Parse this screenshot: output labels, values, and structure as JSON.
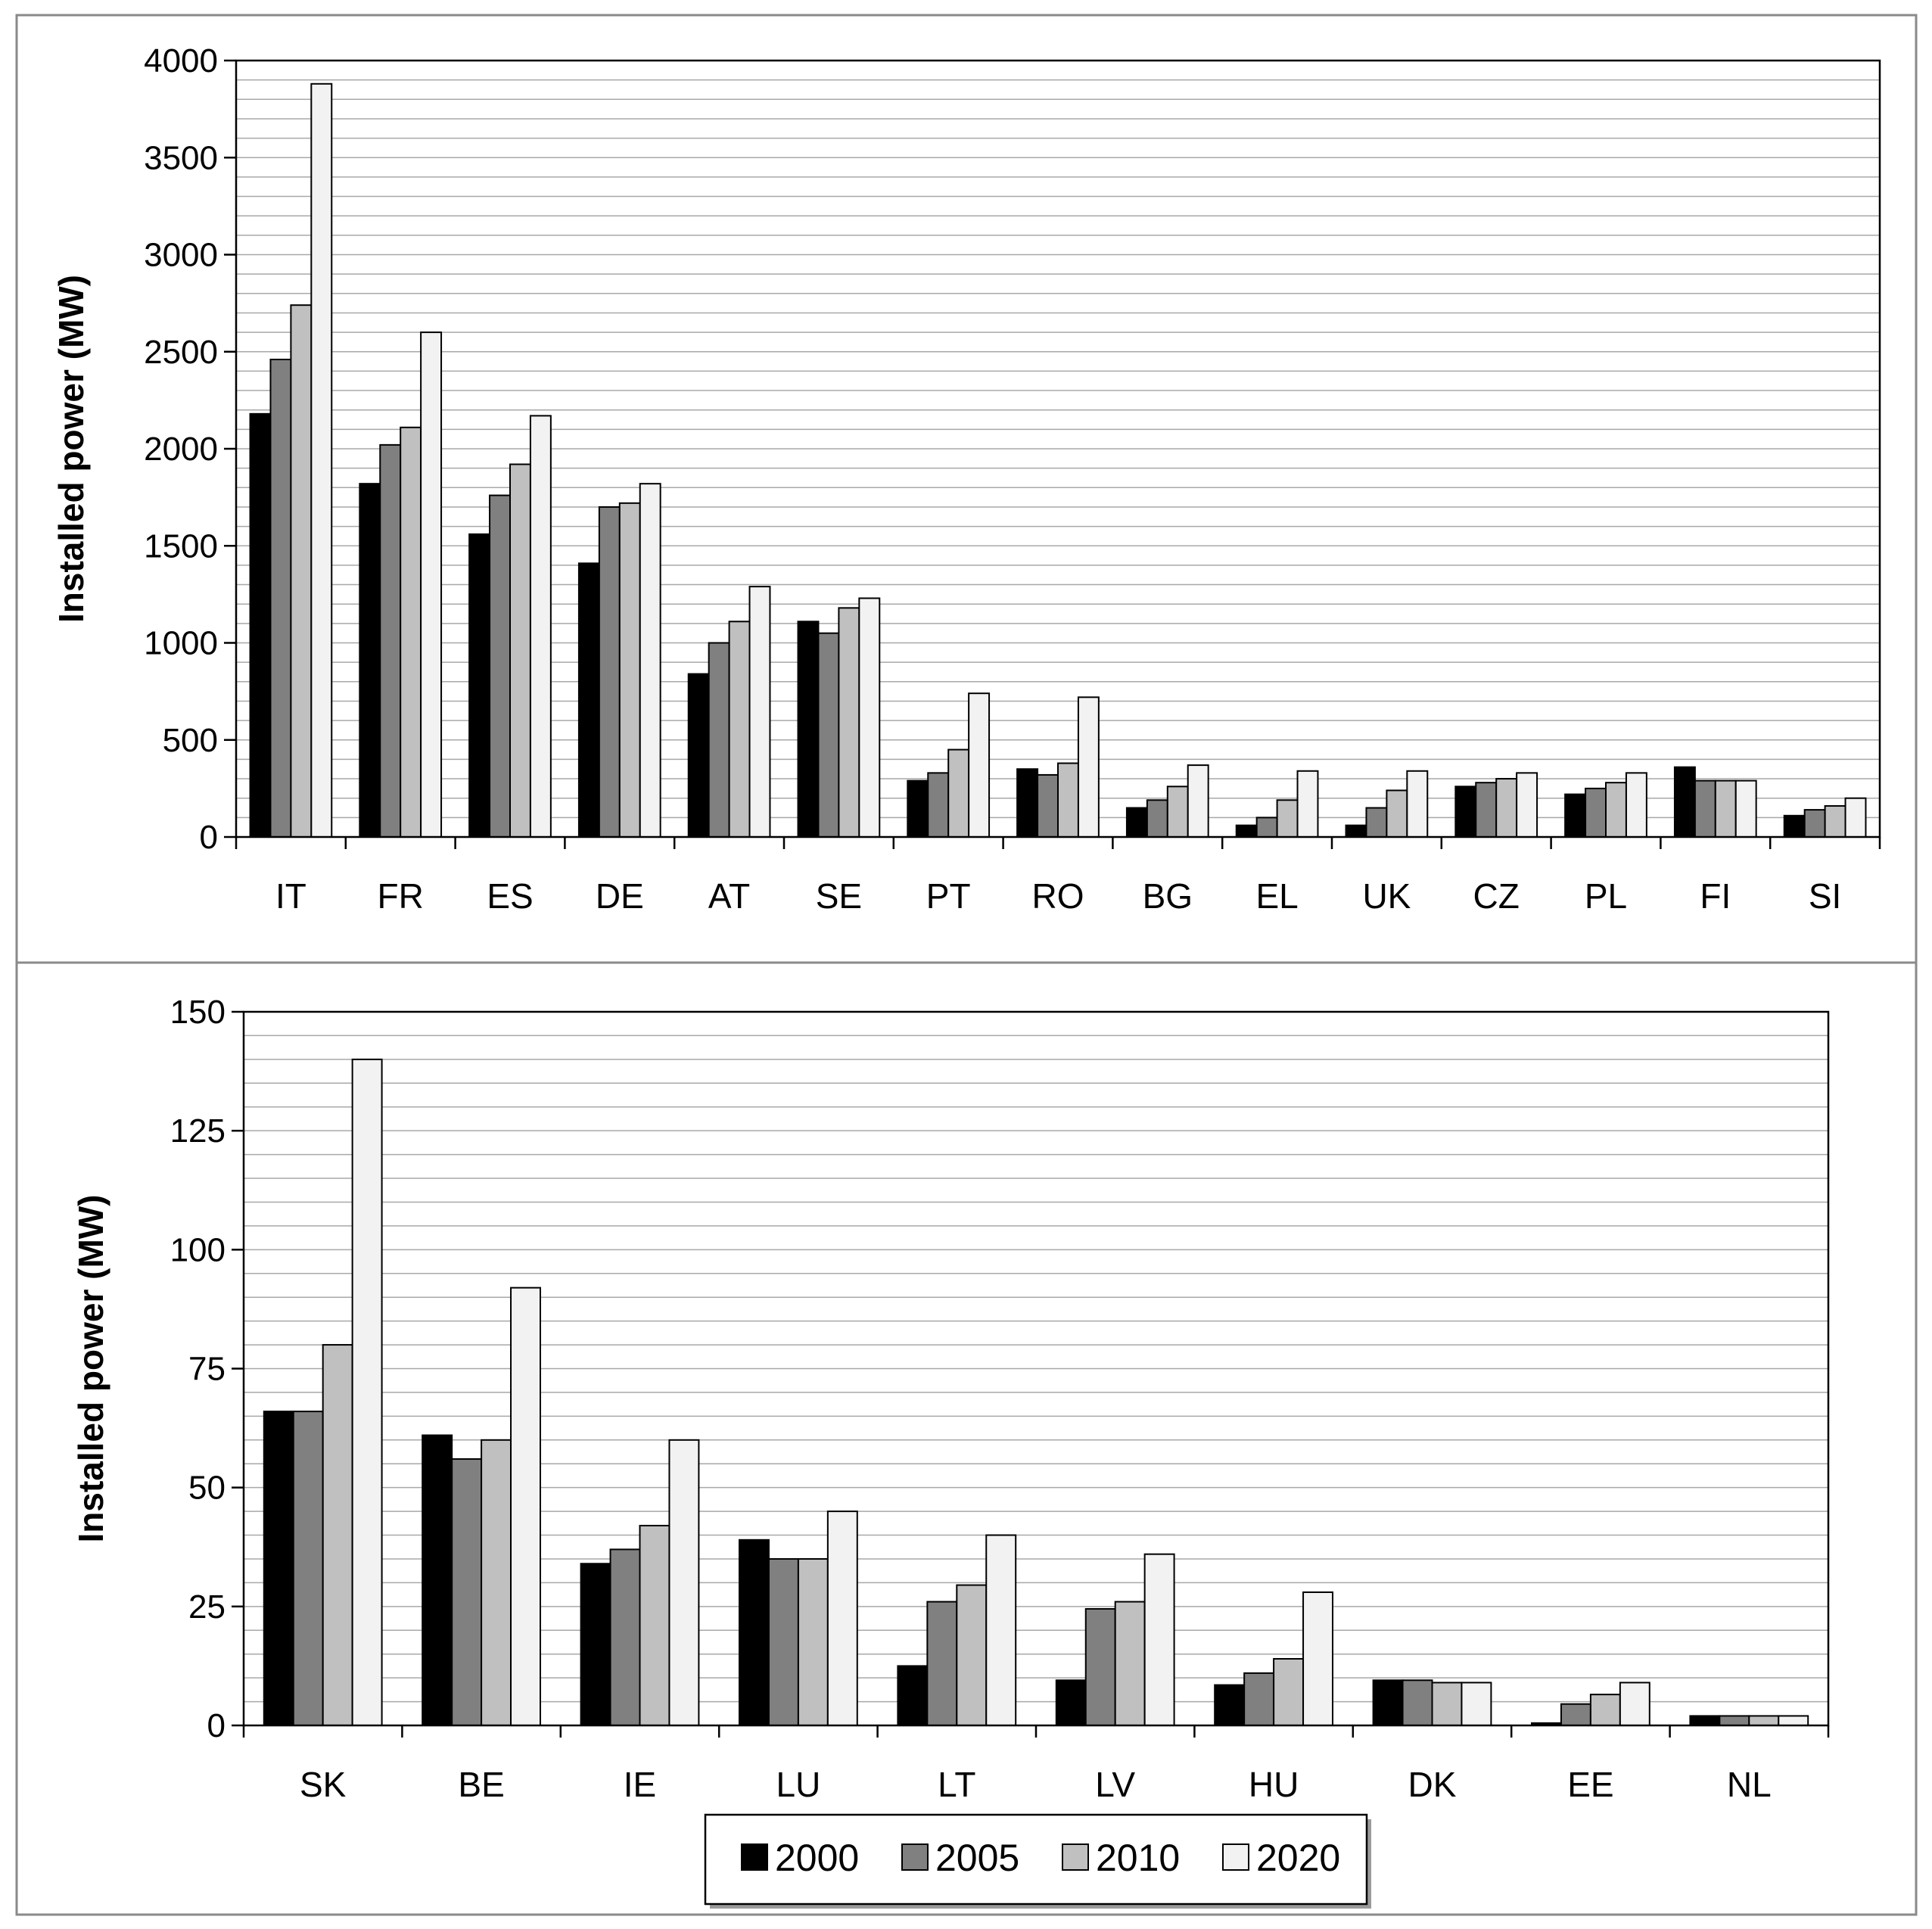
{
  "chart_data": [
    {
      "type": "bar",
      "ylabel": "Installed  power (MW)",
      "ylim": [
        0,
        4000
      ],
      "yticks": [
        0,
        500,
        1000,
        1500,
        2000,
        2500,
        3000,
        3500,
        4000
      ],
      "ytick_labels": [
        "0",
        "500",
        "1000",
        "1500",
        "2000",
        "2500",
        "3000",
        "3500",
        "4000"
      ],
      "minor_grid_step": 100,
      "grid": true,
      "categories": [
        "IT",
        "FR",
        "ES",
        "DE",
        "AT",
        "SE",
        "PT",
        "RO",
        "BG",
        "EL",
        "UK",
        "CZ",
        "PL",
        "FI",
        "SI"
      ],
      "series": [
        {
          "name": "2000",
          "color": "#000000",
          "values": [
            2180,
            1820,
            1560,
            1410,
            840,
            1110,
            290,
            350,
            150,
            60,
            60,
            260,
            220,
            360,
            110
          ]
        },
        {
          "name": "2005",
          "color": "#808080",
          "values": [
            2460,
            2020,
            1760,
            1700,
            1000,
            1050,
            330,
            320,
            190,
            100,
            150,
            280,
            250,
            290,
            140
          ]
        },
        {
          "name": "2010",
          "color": "#c0c0c0",
          "values": [
            2740,
            2110,
            1920,
            1720,
            1110,
            1180,
            450,
            380,
            260,
            190,
            240,
            300,
            280,
            290,
            160
          ]
        },
        {
          "name": "2020",
          "color": "#f2f2f2",
          "values": [
            3880,
            2600,
            2170,
            1820,
            1290,
            1230,
            740,
            720,
            370,
            340,
            340,
            330,
            330,
            290,
            200
          ]
        }
      ]
    },
    {
      "type": "bar",
      "ylabel": "Installed power (MW)",
      "ylim": [
        0,
        150
      ],
      "yticks": [
        0,
        25,
        50,
        75,
        100,
        125,
        150
      ],
      "ytick_labels": [
        "0",
        "25",
        "50",
        "75",
        "100",
        "125",
        "150"
      ],
      "minor_grid_step": 5,
      "grid": true,
      "categories": [
        "SK",
        "BE",
        "IE",
        "LU",
        "LT",
        "LV",
        "HU",
        "DK",
        "EE",
        "NL"
      ],
      "series": [
        {
          "name": "2000",
          "color": "#000000",
          "values": [
            66,
            61,
            34,
            39,
            12.5,
            9.5,
            8.5,
            9.5,
            0.5,
            2
          ]
        },
        {
          "name": "2005",
          "color": "#808080",
          "values": [
            66,
            56,
            37,
            35,
            26,
            24.5,
            11,
            9.5,
            4.5,
            2
          ]
        },
        {
          "name": "2010",
          "color": "#c0c0c0",
          "values": [
            80,
            60,
            42,
            35,
            29.5,
            26,
            14,
            9,
            6.5,
            2
          ]
        },
        {
          "name": "2020",
          "color": "#f2f2f2",
          "values": [
            140,
            92,
            60,
            45,
            40,
            36,
            28,
            9,
            9,
            2
          ]
        }
      ]
    }
  ],
  "legend": {
    "position": "bottom-center",
    "items": [
      {
        "label": "2000",
        "color": "#000000"
      },
      {
        "label": "2005",
        "color": "#808080"
      },
      {
        "label": "2010",
        "color": "#c0c0c0"
      },
      {
        "label": "2020",
        "color": "#f2f2f2"
      }
    ]
  }
}
